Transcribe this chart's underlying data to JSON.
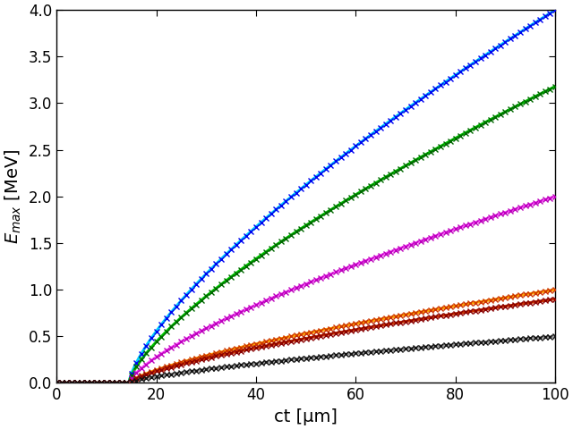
{
  "xlabel": "ct [μm]",
  "ylabel": "$E_{max}$ [MeV]",
  "xlim": [
    0,
    100
  ],
  "ylim": [
    0,
    4
  ],
  "xticks": [
    0,
    20,
    40,
    60,
    80,
    100
  ],
  "yticks": [
    0,
    0.5,
    1.0,
    1.5,
    2.0,
    2.5,
    3.0,
    3.5,
    4.0
  ],
  "curves": [
    {
      "line_color": "#00CCFF",
      "marker_color": "#0000EE",
      "A": 0.145,
      "t0": 14.5,
      "power": 0.72,
      "end_val": 4.0
    },
    {
      "line_color": "#00CC00",
      "marker_color": "#006600",
      "A": 0.105,
      "t0": 14.5,
      "power": 0.72,
      "end_val": 3.18
    },
    {
      "line_color": "#FF55FF",
      "marker_color": "#BB00BB",
      "A": 0.06,
      "t0": 14.5,
      "power": 0.72,
      "end_val": 2.0
    },
    {
      "line_color": "#FFA500",
      "marker_color": "#CC3300",
      "A": 0.028,
      "t0": 14.5,
      "power": 0.72,
      "end_val": 1.0
    },
    {
      "line_color": "#CC3300",
      "marker_color": "#880000",
      "A": 0.022,
      "t0": 14.5,
      "power": 0.72,
      "end_val": 0.9
    },
    {
      "line_color": "#999999",
      "marker_color": "#111111",
      "A": 0.011,
      "t0": 14.5,
      "power": 0.72,
      "end_val": 0.5
    }
  ],
  "linewidth": 2.2,
  "markersize": 5,
  "markeredgewidth": 1.0,
  "marker_step": 1.0,
  "figsize": [
    6.4,
    4.8
  ],
  "dpi": 100,
  "background_color": "#ffffff"
}
